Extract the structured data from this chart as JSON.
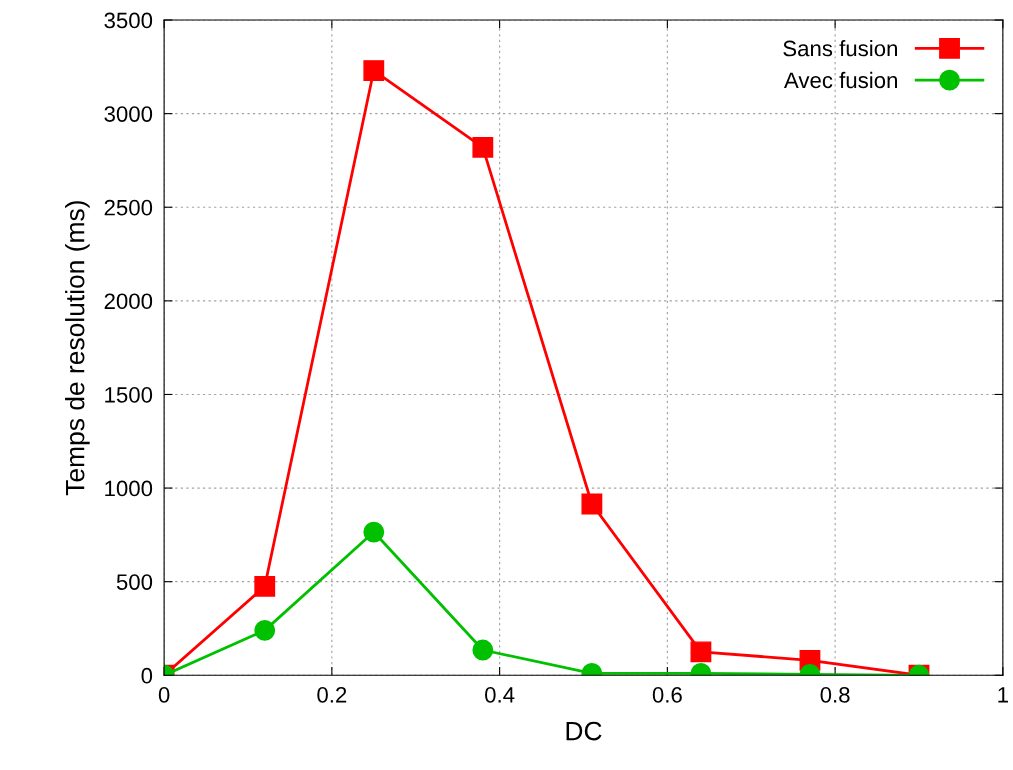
{
  "chart_data": {
    "type": "line",
    "xlabel": "DC",
    "ylabel": "Temps de resolution (ms)",
    "x": [
      0,
      0.12,
      0.25,
      0.38,
      0.51,
      0.64,
      0.77,
      0.9
    ],
    "series": [
      {
        "name": "Sans fusion",
        "color": "#ff0000",
        "marker": "square",
        "values": [
          0,
          475,
          3230,
          2820,
          915,
          125,
          80,
          0
        ]
      },
      {
        "name": "Avec fusion",
        "color": "#00c000",
        "marker": "circle",
        "values": [
          0,
          240,
          765,
          135,
          10,
          10,
          5,
          0
        ]
      }
    ],
    "xlim": [
      0,
      1
    ],
    "xticks": [
      0,
      0.2,
      0.4,
      0.6,
      0.8,
      1
    ],
    "ylim": [
      0,
      3500
    ],
    "yticks": [
      0,
      500,
      1000,
      1500,
      2000,
      2500,
      3000,
      3500
    ],
    "grid": true,
    "legend": "top right",
    "line_style": "solid"
  }
}
